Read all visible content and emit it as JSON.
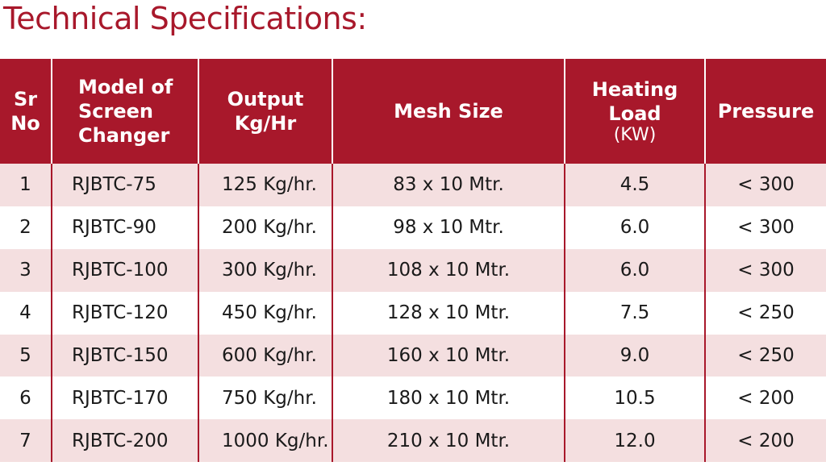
{
  "title": "Technical Specifications:",
  "table": {
    "headers": {
      "sr_no": [
        "Sr",
        "No"
      ],
      "model": [
        "Model of",
        "Screen",
        "Changer"
      ],
      "output": [
        "Output",
        "Kg/Hr"
      ],
      "mesh": "Mesh Size",
      "load": [
        "Heating",
        "Load"
      ],
      "load_unit": "(KW)",
      "pressure": "Pressure"
    },
    "rows": [
      {
        "sr": "1",
        "model": "RJBTC-75",
        "output": "125 Kg/hr.",
        "mesh": "83 x 10 Mtr.",
        "load": "4.5",
        "pressure": "< 300"
      },
      {
        "sr": "2",
        "model": "RJBTC-90",
        "output": "200 Kg/hr.",
        "mesh": "98 x 10 Mtr.",
        "load": "6.0",
        "pressure": "< 300"
      },
      {
        "sr": "3",
        "model": "RJBTC-100",
        "output": "300 Kg/hr.",
        "mesh": "108 x 10 Mtr.",
        "load": "6.0",
        "pressure": "< 300"
      },
      {
        "sr": "4",
        "model": "RJBTC-120",
        "output": "450 Kg/hr.",
        "mesh": "128 x 10 Mtr.",
        "load": "7.5",
        "pressure": "< 250"
      },
      {
        "sr": "5",
        "model": "RJBTC-150",
        "output": "600 Kg/hr.",
        "mesh": "160 x 10 Mtr.",
        "load": "9.0",
        "pressure": "< 250"
      },
      {
        "sr": "6",
        "model": "RJBTC-170",
        "output": "750 Kg/hr.",
        "mesh": "180 x 10 Mtr.",
        "load": "10.5",
        "pressure": "< 200"
      },
      {
        "sr": "7",
        "model": "RJBTC-200",
        "output": "1000 Kg/hr.",
        "mesh": "210 x 10 Mtr.",
        "load": "12.0",
        "pressure": "< 200"
      }
    ]
  },
  "colors": {
    "accent": "#a8182b",
    "row_tint": "#f4dfe0"
  }
}
